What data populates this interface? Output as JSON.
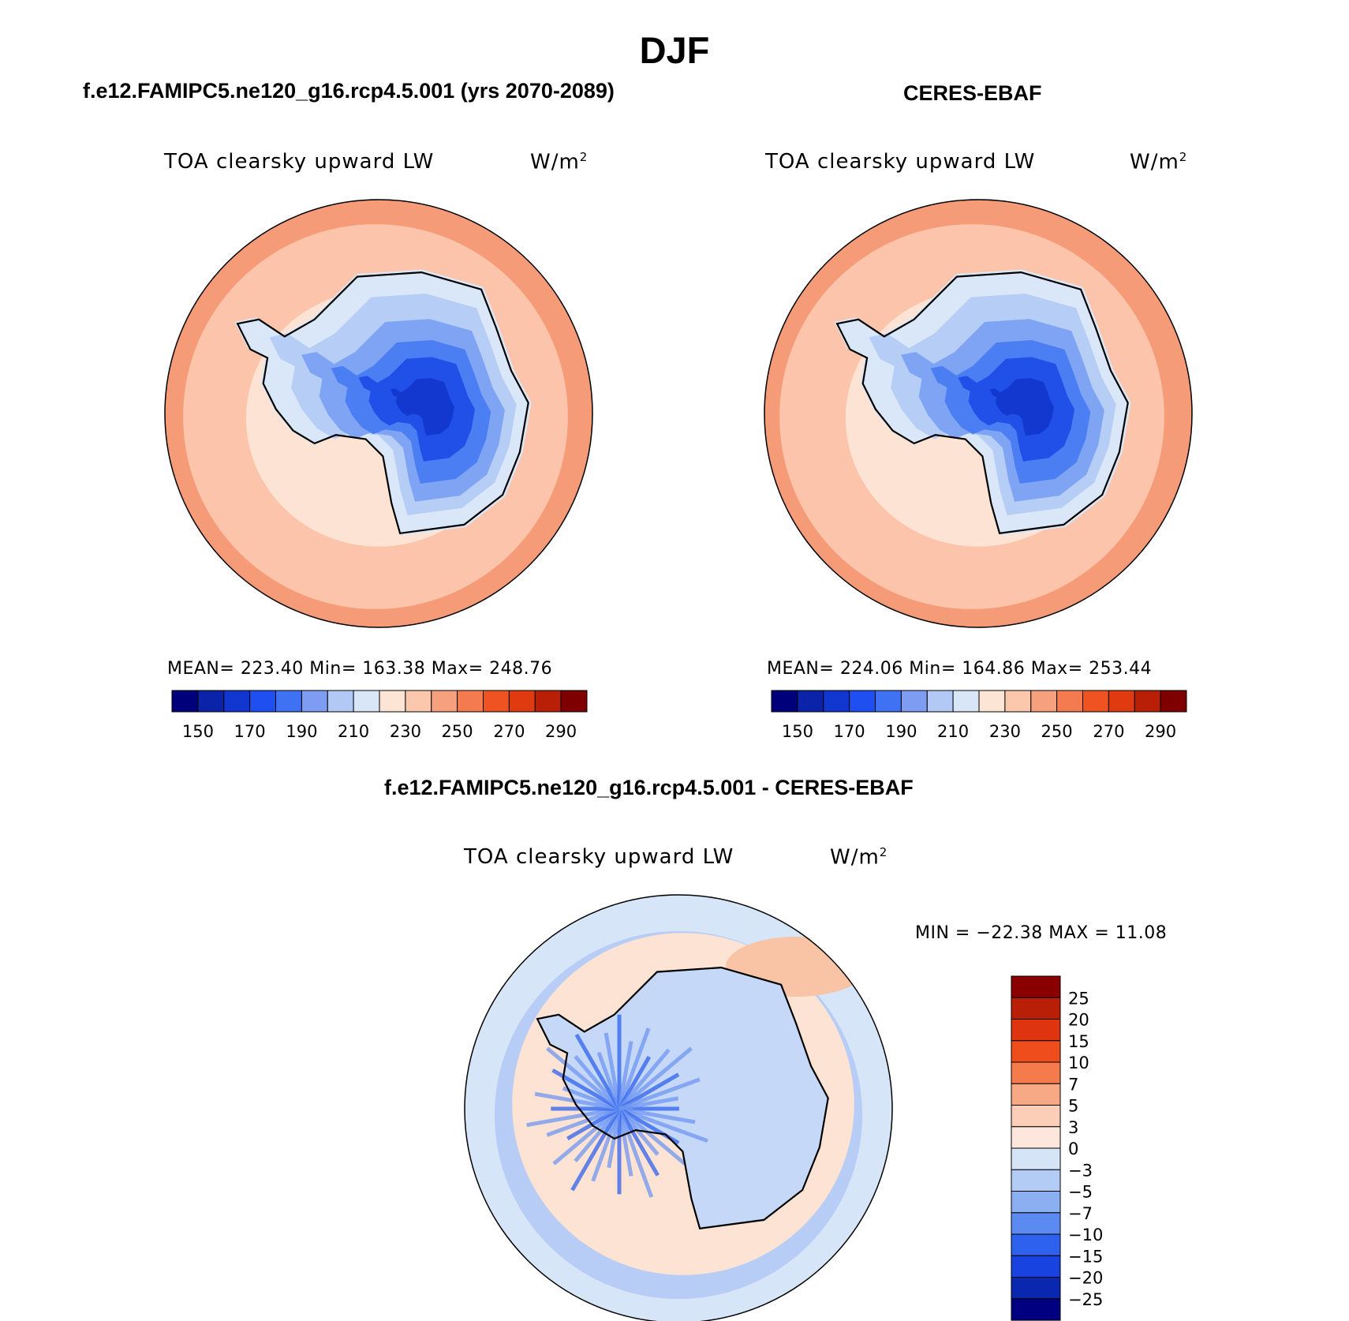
{
  "title": "DJF",
  "panels": [
    {
      "heading": "f.e12.FAMIPC5.ne120_g16.rcp4.5.001 (yrs 2070-2089)",
      "variable": "TOA clearsky upward LW",
      "units": "W/m",
      "units_sup": "2",
      "stats": "MEAN= 223.40   Min= 163.38   Max= 248.76"
    },
    {
      "heading": "CERES-EBAF",
      "variable": "TOA clearsky upward LW",
      "units": "W/m",
      "units_sup": "2",
      "stats": "MEAN= 224.06   Min= 164.86   Max= 253.44"
    },
    {
      "heading": "f.e12.FAMIPC5.ne120_g16.rcp4.5.001 - CERES-EBAF",
      "variable": "TOA clearsky upward LW",
      "units": "W/m",
      "units_sup": "2",
      "stats": "MIN = −22.38 MAX =  11.08"
    }
  ],
  "abs_colorbar": {
    "colors": [
      "#00007a",
      "#0a23a8",
      "#1237d0",
      "#1f4ff0",
      "#3f72f2",
      "#7d9cf2",
      "#b3c9f5",
      "#d8e6f7",
      "#fde5d6",
      "#fcc8ad",
      "#f7a07e",
      "#f47a4f",
      "#ef5322",
      "#e03a10",
      "#b81f06",
      "#7f0000"
    ],
    "tick_labels": [
      "150",
      "170",
      "190",
      "210",
      "230",
      "250",
      "270",
      "290"
    ]
  },
  "diff_colorbar": {
    "colors": [
      "#8a0000",
      "#b81f06",
      "#de3510",
      "#f04d1c",
      "#f67b4c",
      "#f7a884",
      "#fccdb7",
      "#fde7dc",
      "#d5e5f7",
      "#b3ccf5",
      "#8caff2",
      "#5b8bf0",
      "#2e62ee",
      "#1843e0",
      "#0a27b0",
      "#000080"
    ],
    "tick_labels": [
      "25",
      "20",
      "15",
      "10",
      "7",
      "5",
      "3",
      "0",
      "−3",
      "−5",
      "−7",
      "−10",
      "−15",
      "−20",
      "−25"
    ]
  },
  "map_palette": {
    "ocean_deep": "#f69b78",
    "ocean_mid": "#fcc4aa",
    "ocean_light": "#fde3d3",
    "land_pale": "#d9e7f8",
    "land_light": "#b6cdf6",
    "land_mid": "#7fa4f3",
    "land_blue": "#4b7ef2",
    "land_deep": "#2050e8",
    "land_core": "#1238cf",
    "diff_ocean_pos": "#fde3d3",
    "diff_ocean_neg": "#d6e5f8",
    "diff_ocean_neg2": "#b7cdf6",
    "diff_land": "#c5d8f7"
  }
}
